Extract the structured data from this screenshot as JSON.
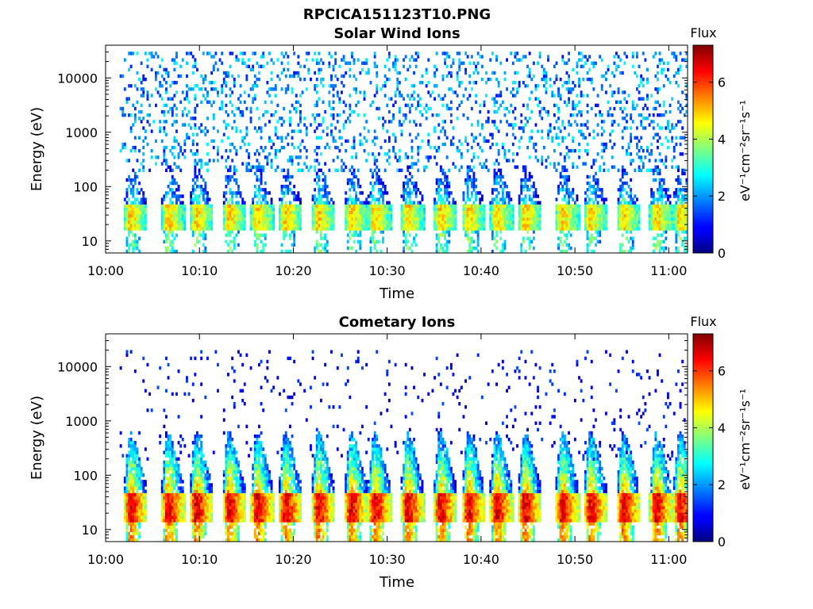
{
  "figure": {
    "title": "RPCICA151123T10.PNG"
  },
  "colorbar": {
    "label": "Flux",
    "unit_label": "eV⁻¹cm⁻²sr⁻¹s⁻¹",
    "colormap": "jet",
    "range": [
      0,
      7.3
    ],
    "ticks": [
      "0",
      "2",
      "4",
      "6"
    ]
  },
  "chart_data": [
    {
      "type": "heatmap",
      "title": "Solar Wind Ions",
      "xlabel": "Time",
      "ylabel": "Energy (eV)",
      "x_ticks": [
        "10:00",
        "10:10",
        "10:20",
        "10:30",
        "10:40",
        "10:50",
        "11:00"
      ],
      "x_range": [
        "10:00",
        "11:02"
      ],
      "data_start": "10:01:30",
      "y_ticks": [
        "10",
        "100",
        "1000",
        "10000"
      ],
      "y_range": [
        6,
        40000
      ],
      "y_scale": "log",
      "colorbar_range": [
        0,
        7.3
      ],
      "bursts_minutes": [
        2.5,
        6.5,
        9.5,
        13.0,
        16.0,
        19.0,
        22.5,
        26.0,
        28.5,
        32.0,
        35.5,
        38.5,
        41.5,
        44.5,
        48.5,
        51.5,
        55.0,
        58.5,
        61.0
      ],
      "core_energy_eV": [
        18,
        45
      ],
      "core_flux_peak": 4.8,
      "background_flux": [
        1.0,
        2.8
      ],
      "background_energy_eV": [
        200,
        30000
      ]
    },
    {
      "type": "heatmap",
      "title": "Cometary Ions",
      "xlabel": "Time",
      "ylabel": "Energy (eV)",
      "x_ticks": [
        "10:00",
        "10:10",
        "10:20",
        "10:30",
        "10:40",
        "10:50",
        "11:00"
      ],
      "x_range": [
        "10:00",
        "11:02"
      ],
      "data_start": "10:01:30",
      "y_ticks": [
        "10",
        "100",
        "1000",
        "10000"
      ],
      "y_range": [
        6,
        40000
      ],
      "y_scale": "log",
      "colorbar_range": [
        0,
        7.3
      ],
      "bursts_minutes": [
        2.5,
        6.5,
        9.5,
        13.0,
        16.0,
        19.0,
        22.5,
        26.0,
        28.5,
        32.0,
        35.5,
        38.5,
        41.5,
        44.5,
        48.5,
        51.5,
        55.0,
        58.5,
        61.0
      ],
      "core_energy_eV": [
        15,
        45
      ],
      "core_flux_peak": 6.5,
      "background_flux": [
        0.3,
        1.5
      ],
      "background_energy_eV": [
        200,
        20000
      ]
    }
  ]
}
